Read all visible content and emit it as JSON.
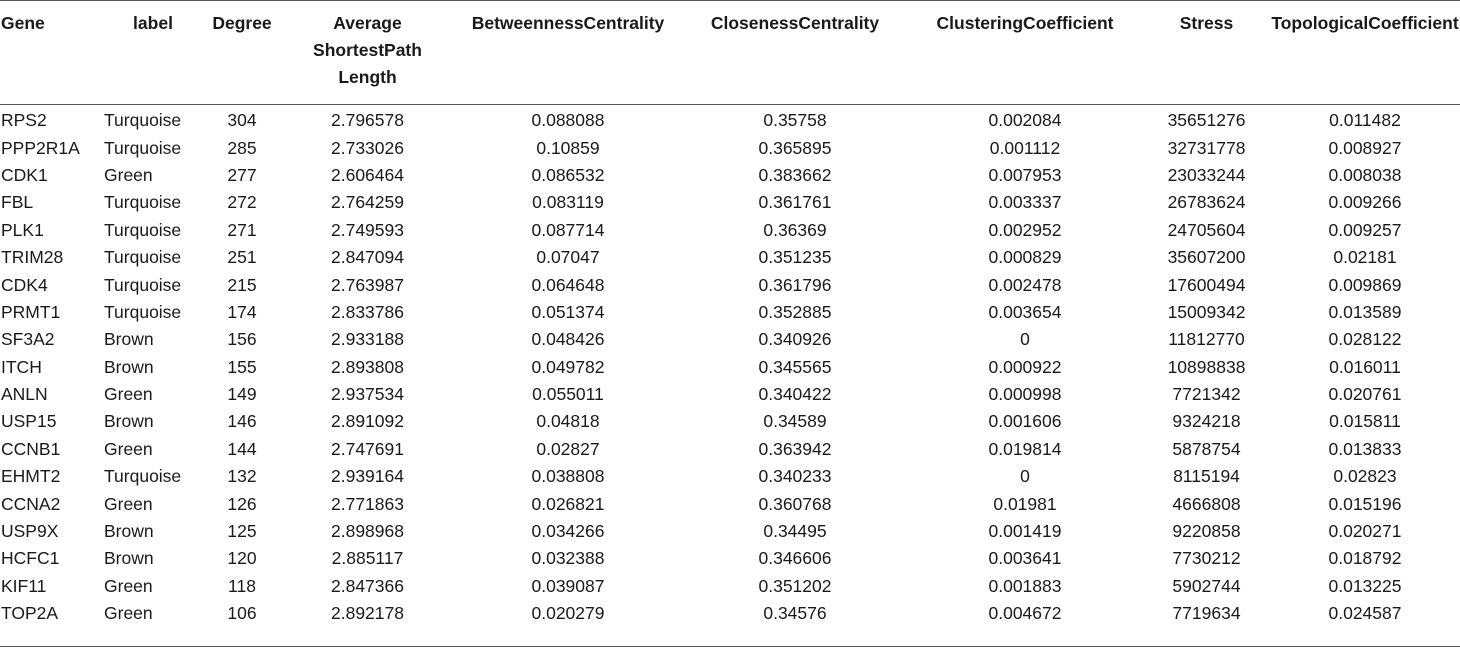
{
  "table": {
    "headers": {
      "gene": "Gene",
      "label": "label",
      "degree": "Degree",
      "aspl_line1": "Average",
      "aspl_line2": "ShortestPath",
      "aspl_line3": "Length",
      "betweenness": "BetweennessCentrality",
      "closeness": "ClosenessCentrality",
      "clustering": "ClusteringCoefficient",
      "stress": "Stress",
      "topological": "TopologicalCoefficient"
    },
    "rows": [
      [
        "RPS2",
        "Turquoise",
        "304",
        "2.796578",
        "0.088088",
        "0.35758",
        "0.002084",
        "35651276",
        "0.011482"
      ],
      [
        "PPP2R1A",
        "Turquoise",
        "285",
        "2.733026",
        "0.10859",
        "0.365895",
        "0.001112",
        "32731778",
        "0.008927"
      ],
      [
        "CDK1",
        "Green",
        "277",
        "2.606464",
        "0.086532",
        "0.383662",
        "0.007953",
        "23033244",
        "0.008038"
      ],
      [
        "FBL",
        "Turquoise",
        "272",
        "2.764259",
        "0.083119",
        "0.361761",
        "0.003337",
        "26783624",
        "0.009266"
      ],
      [
        "PLK1",
        "Turquoise",
        "271",
        "2.749593",
        "0.087714",
        "0.36369",
        "0.002952",
        "24705604",
        "0.009257"
      ],
      [
        "TRIM28",
        "Turquoise",
        "251",
        "2.847094",
        "0.07047",
        "0.351235",
        "0.000829",
        "35607200",
        "0.02181"
      ],
      [
        "CDK4",
        "Turquoise",
        "215",
        "2.763987",
        "0.064648",
        "0.361796",
        "0.002478",
        "17600494",
        "0.009869"
      ],
      [
        "PRMT1",
        "Turquoise",
        "174",
        "2.833786",
        "0.051374",
        "0.352885",
        "0.003654",
        "15009342",
        "0.013589"
      ],
      [
        "SF3A2",
        "Brown",
        "156",
        "2.933188",
        "0.048426",
        "0.340926",
        "0",
        "11812770",
        "0.028122"
      ],
      [
        "ITCH",
        "Brown",
        "155",
        "2.893808",
        "0.049782",
        "0.345565",
        "0.000922",
        "10898838",
        "0.016011"
      ],
      [
        "ANLN",
        "Green",
        "149",
        "2.937534",
        "0.055011",
        "0.340422",
        "0.000998",
        "7721342",
        "0.020761"
      ],
      [
        "USP15",
        "Brown",
        "146",
        "2.891092",
        "0.04818",
        "0.34589",
        "0.001606",
        "9324218",
        "0.015811"
      ],
      [
        "CCNB1",
        "Green",
        "144",
        "2.747691",
        "0.02827",
        "0.363942",
        "0.019814",
        "5878754",
        "0.013833"
      ],
      [
        "EHMT2",
        "Turquoise",
        "132",
        "2.939164",
        "0.038808",
        "0.340233",
        "0",
        "8115194",
        "0.02823"
      ],
      [
        "CCNA2",
        "Green",
        "126",
        "2.771863",
        "0.026821",
        "0.360768",
        "0.01981",
        "4666808",
        "0.015196"
      ],
      [
        "USP9X",
        "Brown",
        "125",
        "2.898968",
        "0.034266",
        "0.34495",
        "0.001419",
        "9220858",
        "0.020271"
      ],
      [
        "HCFC1",
        "Brown",
        "120",
        "2.885117",
        "0.032388",
        "0.346606",
        "0.003641",
        "7730212",
        "0.018792"
      ],
      [
        "KIF11",
        "Green",
        "118",
        "2.847366",
        "0.039087",
        "0.351202",
        "0.001883",
        "5902744",
        "0.013225"
      ],
      [
        "TOP2A",
        "Green",
        "106",
        "2.892178",
        "0.020279",
        "0.34576",
        "0.004672",
        "7719634",
        "0.024587"
      ]
    ]
  }
}
